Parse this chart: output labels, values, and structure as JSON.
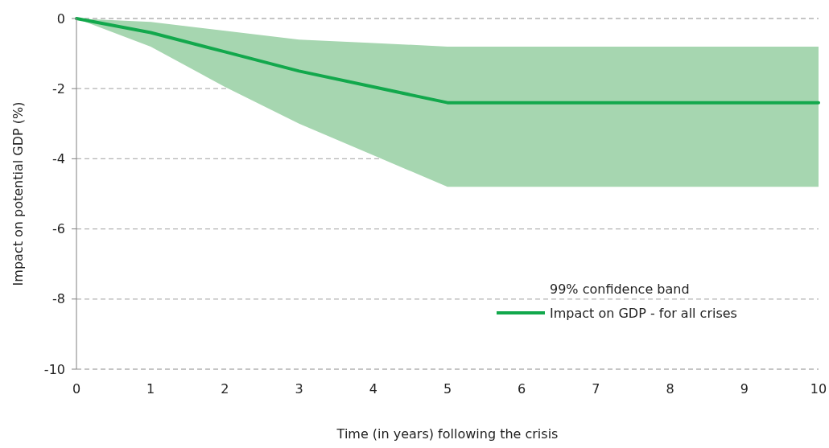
{
  "chart_data": {
    "type": "line",
    "xlabel": "Time (in years) following the crisis",
    "ylabel": "Impact on potential GDP (%)",
    "x": [
      0,
      1,
      2,
      3,
      4,
      5,
      6,
      7,
      8,
      9,
      10
    ],
    "series": [
      {
        "name": "Impact on GDP - for all crises",
        "type": "line",
        "color": "#12a84c",
        "values": [
          0,
          -0.4,
          -0.95,
          -1.5,
          -1.95,
          -2.4,
          -2.4,
          -2.4,
          -2.4,
          -2.4,
          -2.4
        ],
        "lower": [
          0,
          -0.8,
          -1.95,
          -3.0,
          -3.9,
          -4.8,
          -4.8,
          -4.8,
          -4.8,
          -4.8,
          -4.8
        ],
        "upper": [
          0,
          -0.1,
          -0.35,
          -0.6,
          -0.7,
          -0.8,
          -0.8,
          -0.8,
          -0.8,
          -0.8,
          -0.8
        ]
      }
    ],
    "annotations": [
      "99% confidence band"
    ],
    "xlim": [
      0,
      10
    ],
    "xticks": [
      0,
      1,
      2,
      3,
      4,
      5,
      6,
      7,
      8,
      9,
      10
    ],
    "ylim": [
      -10,
      0
    ],
    "yticks": [
      0,
      -2,
      -4,
      -6,
      -8,
      -10
    ],
    "grid": "y",
    "legend": "bottom right",
    "line_style": "solid"
  }
}
